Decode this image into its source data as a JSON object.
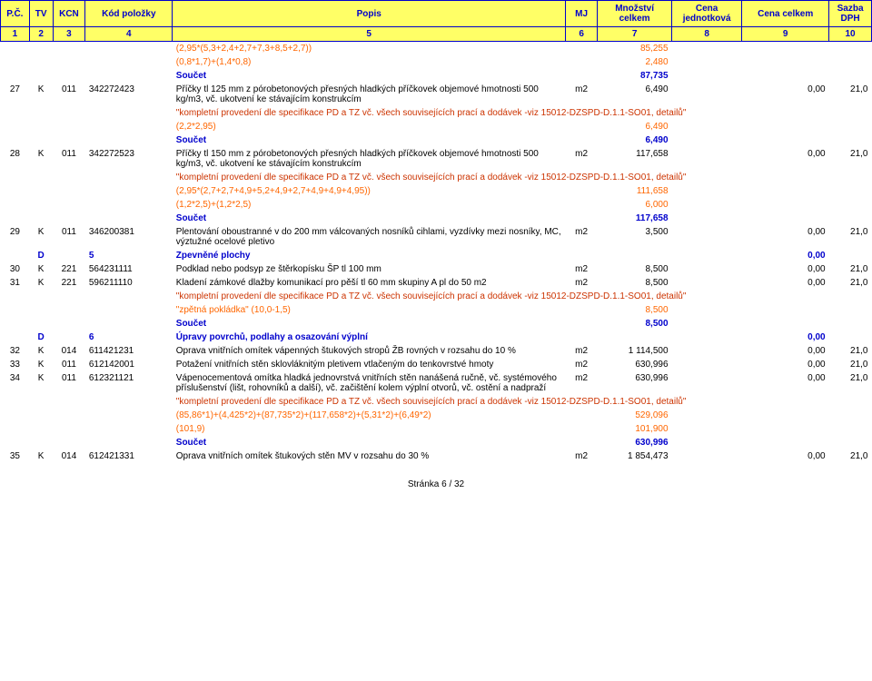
{
  "header": {
    "cols": [
      "P.Č.",
      "TV",
      "KCN",
      "Kód položky",
      "Popis",
      "MJ",
      "Množství celkem",
      "Cena jednotková",
      "Cena celkem",
      "Sazba DPH"
    ],
    "nums": [
      "1",
      "2",
      "3",
      "4",
      "5",
      "6",
      "7",
      "8",
      "9",
      "10"
    ]
  },
  "rows": [
    {
      "type": "calc",
      "popis": "(2,95*(5,3+2,4+2,7+7,3+8,5+2,7))",
      "val": "85,255"
    },
    {
      "type": "calc",
      "popis": "(0,8*1,7)+(1,4*0,8)",
      "val": "2,480"
    },
    {
      "type": "soucet",
      "popis": "Součet",
      "val": "87,735"
    },
    {
      "type": "item",
      "pc": "27",
      "tv": "K",
      "kcn": "011",
      "kod": "342272423",
      "popis": "Příčky tl 125 mm z pórobetonových přesných hladkých příčkovek objemové hmotnosti 500 kg/m3, vč. ukotvení ke stávajícím konstrukcím",
      "mj": "m2",
      "mn": "6,490",
      "cj": "",
      "cc": "0,00",
      "dph": "21,0"
    },
    {
      "type": "note",
      "popis": "\"kompletní provedení dle specifikace PD a TZ vč. všech souvisejících prací a dodávek -viz 15012-DZSPD-D.1.1-SO01, detailů\""
    },
    {
      "type": "calc",
      "popis": "(2,2*2,95)",
      "val": "6,490"
    },
    {
      "type": "soucet",
      "popis": "Součet",
      "val": "6,490"
    },
    {
      "type": "item",
      "pc": "28",
      "tv": "K",
      "kcn": "011",
      "kod": "342272523",
      "popis": "Příčky tl 150 mm z pórobetonových přesných hladkých příčkovek objemové hmotnosti 500 kg/m3, vč. ukotvení ke stávajícím konstrukcím",
      "mj": "m2",
      "mn": "117,658",
      "cj": "",
      "cc": "0,00",
      "dph": "21,0"
    },
    {
      "type": "note",
      "popis": "\"kompletní provedení dle specifikace PD a TZ vč. všech souvisejících prací a dodávek -viz 15012-DZSPD-D.1.1-SO01, detailů\""
    },
    {
      "type": "calc",
      "popis": "(2,95*(2,7+2,7+4,9+5,2+4,9+2,7+4,9+4,9+4,95))",
      "val": "111,658"
    },
    {
      "type": "calc",
      "popis": "(1,2*2,5)+(1,2*2,5)",
      "val": "6,000"
    },
    {
      "type": "soucet",
      "popis": "Součet",
      "val": "117,658"
    },
    {
      "type": "item",
      "pc": "29",
      "tv": "K",
      "kcn": "011",
      "kod": "346200381",
      "popis": "Plentování oboustranné v do 200 mm válcovaných nosníků cihlami, vyzdívky mezi nosníky, MC, výztužné ocelové pletivo",
      "mj": "m2",
      "mn": "3,500",
      "cj": "",
      "cc": "0,00",
      "dph": "21,0"
    },
    {
      "type": "section",
      "tv": "D",
      "kcn": "",
      "kod": "5",
      "popis": "Zpevněné plochy",
      "cc": "0,00"
    },
    {
      "type": "item",
      "pc": "30",
      "tv": "K",
      "kcn": "221",
      "kod": "564231111",
      "popis": "Podklad nebo podsyp ze štěrkopísku ŠP tl 100 mm",
      "mj": "m2",
      "mn": "8,500",
      "cj": "",
      "cc": "0,00",
      "dph": "21,0"
    },
    {
      "type": "item",
      "pc": "31",
      "tv": "K",
      "kcn": "221",
      "kod": "596211110",
      "popis": "Kladení zámkové dlažby komunikací pro pěší tl 60 mm skupiny A pl do 50 m2",
      "mj": "m2",
      "mn": "8,500",
      "cj": "",
      "cc": "0,00",
      "dph": "21,0"
    },
    {
      "type": "note",
      "popis": "\"kompletní provedení dle specifikace PD a TZ vč. všech souvisejících prací a dodávek -viz 15012-DZSPD-D.1.1-SO01, detailů\""
    },
    {
      "type": "calc",
      "popis": "\"zpětná pokládka\" (10,0-1,5)",
      "val": "8,500"
    },
    {
      "type": "soucet",
      "popis": "Součet",
      "val": "8,500"
    },
    {
      "type": "section",
      "tv": "D",
      "kcn": "",
      "kod": "6",
      "popis": "Úpravy povrchů, podlahy a osazování výplní",
      "cc": "0,00"
    },
    {
      "type": "item",
      "pc": "32",
      "tv": "K",
      "kcn": "014",
      "kod": "611421231",
      "popis": "Oprava vnitřních omítek vápenných štukových stropů ŽB rovných v rozsahu do 10 %",
      "mj": "m2",
      "mn": "1 114,500",
      "cj": "",
      "cc": "0,00",
      "dph": "21,0"
    },
    {
      "type": "item",
      "pc": "33",
      "tv": "K",
      "kcn": "011",
      "kod": "612142001",
      "popis": "Potažení vnitřních stěn sklovláknitým pletivem vtlačeným do tenkovrstvé hmoty",
      "mj": "m2",
      "mn": "630,996",
      "cj": "",
      "cc": "0,00",
      "dph": "21,0"
    },
    {
      "type": "item",
      "pc": "34",
      "tv": "K",
      "kcn": "011",
      "kod": "612321121",
      "popis": "Vápenocementová omítka hladká jednovrstvá vnitřních stěn nanášená ručně, vč. systémového příslušenství (lišt, rohovníků a další), vč. začištění kolem výplní otvorů, vč. ostění a nadpraží",
      "mj": "m2",
      "mn": "630,996",
      "cj": "",
      "cc": "0,00",
      "dph": "21,0"
    },
    {
      "type": "note",
      "popis": "\"kompletní provedení dle specifikace PD a TZ vč. všech souvisejících prací a dodávek -viz 15012-DZSPD-D.1.1-SO01, detailů\""
    },
    {
      "type": "calc",
      "popis": "(85,86*1)+(4,425*2)+(87,735*2)+(117,658*2)+(5,31*2)+(6,49*2)",
      "val": "529,096"
    },
    {
      "type": "calc",
      "popis": "(101,9)",
      "val": "101,900"
    },
    {
      "type": "soucet",
      "popis": "Součet",
      "val": "630,996"
    },
    {
      "type": "item",
      "pc": "35",
      "tv": "K",
      "kcn": "014",
      "kod": "612421331",
      "popis": "Oprava vnitřních omítek štukových stěn MV v rozsahu do 30 %",
      "mj": "m2",
      "mn": "1 854,473",
      "cj": "",
      "cc": "0,00",
      "dph": "21,0"
    }
  ],
  "footer": "Stránka 6 / 32"
}
